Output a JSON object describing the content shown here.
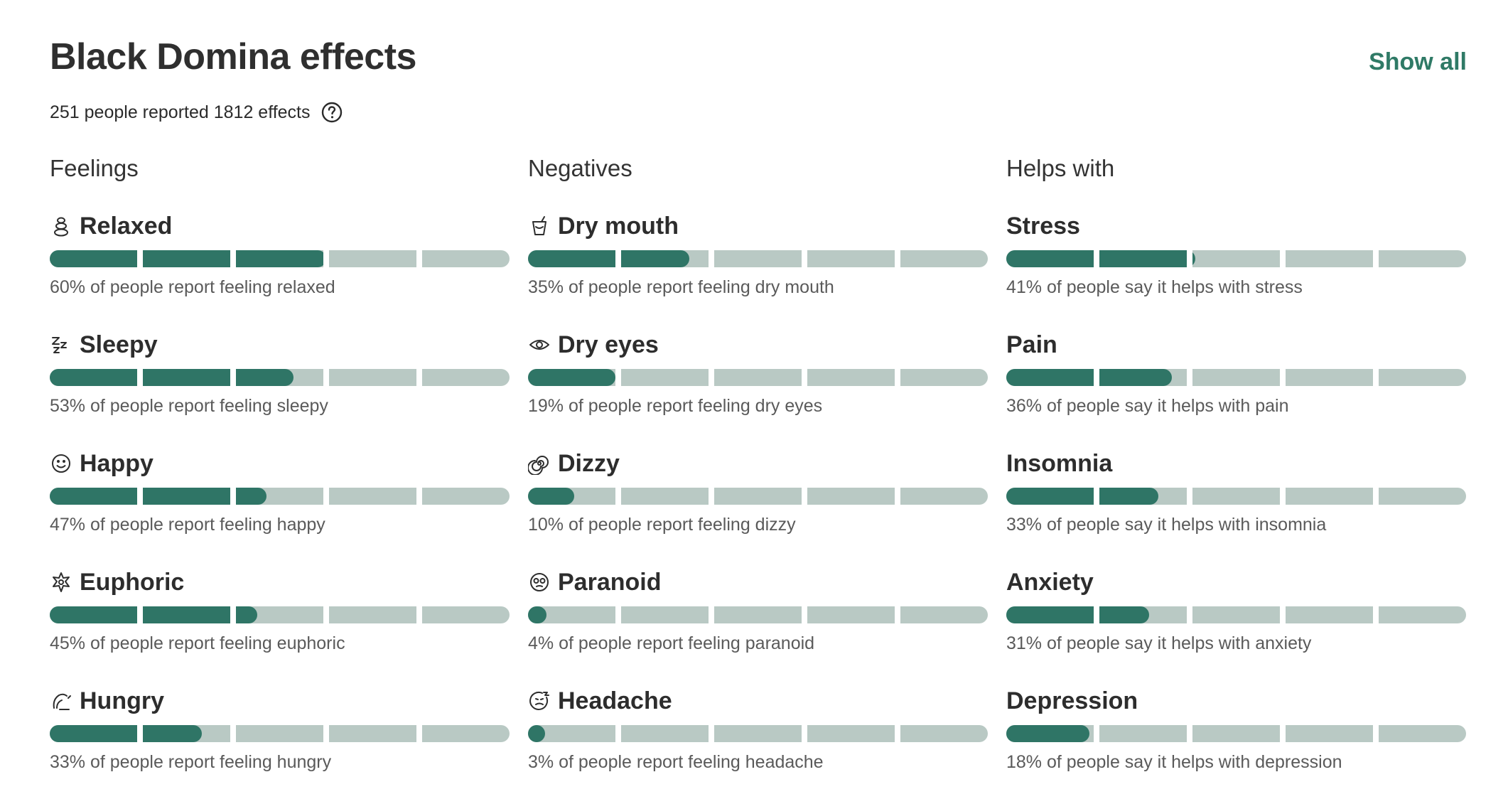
{
  "header": {
    "title": "Black Domina effects",
    "show_all_label": "Show all",
    "summary": "251 people reported 1812 effects",
    "help_icon": "question-circle-icon"
  },
  "columns": [
    {
      "heading": "Feelings",
      "items": [
        {
          "label": "Relaxed",
          "icon": "stones-icon",
          "percent": 60,
          "desc": "60% of people report feeling relaxed"
        },
        {
          "label": "Sleepy",
          "icon": "zzz-icon",
          "percent": 53,
          "desc": "53% of people report feeling sleepy"
        },
        {
          "label": "Happy",
          "icon": "smiley-icon",
          "percent": 47,
          "desc": "47% of people report feeling happy"
        },
        {
          "label": "Euphoric",
          "icon": "starburst-icon",
          "percent": 45,
          "desc": "45% of people report feeling euphoric"
        },
        {
          "label": "Hungry",
          "icon": "hungry-icon",
          "percent": 33,
          "desc": "33% of people report feeling hungry"
        }
      ]
    },
    {
      "heading": "Negatives",
      "items": [
        {
          "label": "Dry mouth",
          "icon": "cup-icon",
          "percent": 35,
          "desc": "35% of people report feeling dry mouth"
        },
        {
          "label": "Dry eyes",
          "icon": "eye-icon",
          "percent": 19,
          "desc": "19% of people report feeling dry eyes"
        },
        {
          "label": "Dizzy",
          "icon": "spiral-icon",
          "percent": 10,
          "desc": "10% of people report feeling dizzy"
        },
        {
          "label": "Paranoid",
          "icon": "paranoid-face-icon",
          "percent": 4,
          "desc": "4% of people report feeling paranoid"
        },
        {
          "label": "Headache",
          "icon": "headache-face-icon",
          "percent": 3,
          "desc": "3% of people report feeling headache"
        }
      ]
    },
    {
      "heading": "Helps with",
      "items": [
        {
          "label": "Stress",
          "icon": "",
          "percent": 41,
          "desc": "41% of people say it helps with stress"
        },
        {
          "label": "Pain",
          "icon": "",
          "percent": 36,
          "desc": "36% of people say it helps with pain"
        },
        {
          "label": "Insomnia",
          "icon": "",
          "percent": 33,
          "desc": "33% of people say it helps with insomnia"
        },
        {
          "label": "Anxiety",
          "icon": "",
          "percent": 31,
          "desc": "31% of people say it helps with anxiety"
        },
        {
          "label": "Depression",
          "icon": "",
          "percent": 18,
          "desc": "18% of people say it helps with depression"
        }
      ]
    }
  ],
  "colors": {
    "fill": "#2f7566",
    "track": "#b9c9c4",
    "accent": "#2f7a66"
  }
}
